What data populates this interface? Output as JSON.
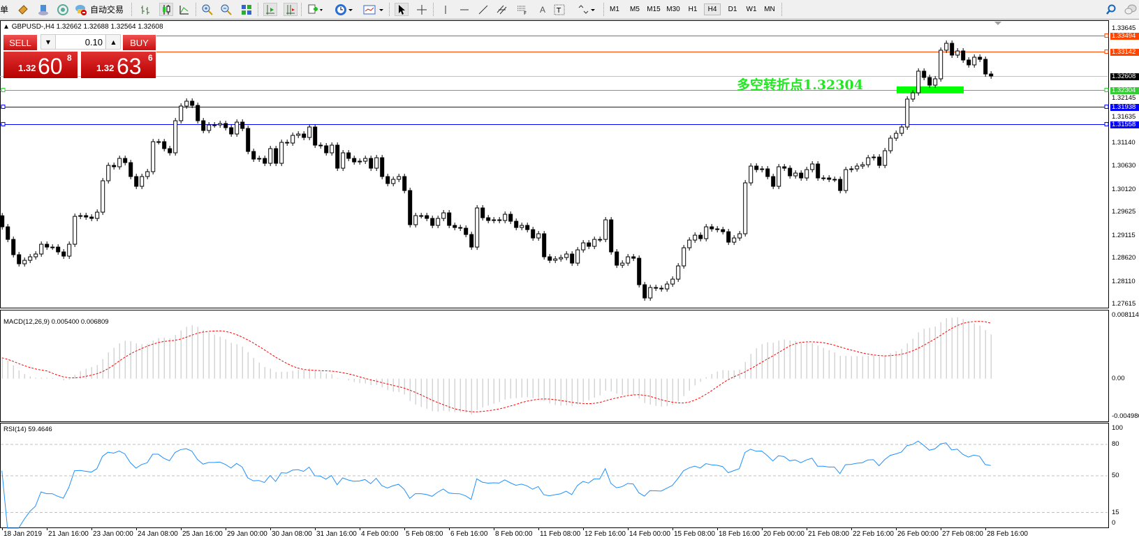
{
  "toolbar": {
    "cut_text": "单",
    "auto_trading_label": "自动交易",
    "icons": [
      "new-order-icon",
      "market-watch-icon",
      "navigator-icon",
      "signals-icon",
      "auto-trading-icon",
      "bar-chart-icon",
      "candlestick-icon",
      "line-chart-icon",
      "zoom-in-icon",
      "zoom-out-icon",
      "tile-windows-icon",
      "chart-shift-icon",
      "autoscroll-icon",
      "indicators-icon",
      "periods-icon",
      "templates-icon",
      "cursor-icon",
      "crosshair-icon",
      "vertical-line-icon",
      "horizontal-line-icon",
      "trendline-icon",
      "equidistant-channel-icon",
      "fibonacci-icon",
      "text-icon",
      "text-label-icon",
      "arrows-icon",
      "search-icon",
      "chat-icon"
    ],
    "timeframes": [
      "M1",
      "M5",
      "M15",
      "M30",
      "H1",
      "H4",
      "D1",
      "W1",
      "MN"
    ],
    "active_timeframe": "H4"
  },
  "chart": {
    "header": "GBPUSD-,H4  1.32662 1.32688 1.32564 1.32608",
    "annotation": "多空转折点1.32304",
    "annotation_color": "#22e822"
  },
  "trade_panel": {
    "sell_label": "SELL",
    "buy_label": "BUY",
    "volume": "0.10",
    "sell_small": "1.32",
    "sell_big": "60",
    "sell_sup": "8",
    "buy_small": "1.32",
    "buy_big": "63",
    "buy_sup": "6"
  },
  "price_axis": {
    "ticks": [
      "1.33645",
      "1.32145",
      "1.31635",
      "1.31140",
      "1.30630",
      "1.30120",
      "1.29625",
      "1.29115",
      "1.28620",
      "1.28110",
      "1.27615"
    ],
    "levels": [
      {
        "price": "1.33494",
        "color": "#ff4500"
      },
      {
        "price": "1.33142",
        "color": "#ff4500"
      },
      {
        "price": "1.32608",
        "color": "#000000",
        "line_color": "#c0c0c0"
      },
      {
        "price": "1.32304",
        "color": "#32cd32"
      },
      {
        "price": "1.31938",
        "color": "#0000ff"
      },
      {
        "price": "1.31558",
        "color": "#0000ff"
      }
    ]
  },
  "macd": {
    "label": "MACD(12,26,9) 0.005400 0.006809",
    "axis": [
      "0.008114",
      "0.00",
      "-0.004986"
    ],
    "range": [
      -0.004986,
      0.008114
    ],
    "histogram_color": "#c0c0c0",
    "signal_color": "#ff0000"
  },
  "rsi": {
    "label": "RSI(14) 59.4646",
    "axis": [
      "100",
      "80",
      "50",
      "15",
      "0"
    ],
    "levels": [
      80,
      50,
      15
    ],
    "color": "#1e90ff"
  },
  "time_axis": [
    "18 Jan 2019",
    "21 Jan 16:00",
    "23 Jan 00:00",
    "24 Jan 08:00",
    "25 Jan 16:00",
    "29 Jan 00:00",
    "30 Jan 08:00",
    "31 Jan 16:00",
    "4 Feb 00:00",
    "5 Feb 08:00",
    "6 Feb 16:00",
    "8 Feb 00:00",
    "11 Feb 08:00",
    "12 Feb 16:00",
    "14 Feb 00:00",
    "15 Feb 08:00",
    "18 Feb 16:00",
    "20 Feb 00:00",
    "21 Feb 08:00",
    "22 Feb 16:00",
    "26 Feb 00:00",
    "27 Feb 08:00",
    "28 Feb 16:00"
  ],
  "chart_data": {
    "type": "candlestick",
    "symbol": "GBPUSD-",
    "timeframe": "H4",
    "ylim": [
      1.27615,
      1.33645
    ],
    "first_open": 1.2955,
    "close": [
      1.29308,
      1.29033,
      1.28698,
      1.28499,
      1.28575,
      1.28652,
      1.28713,
      1.28927,
      1.28865,
      1.28865,
      1.28759,
      1.28667,
      1.28927,
      1.29537,
      1.29553,
      1.29522,
      1.29492,
      1.29629,
      1.30316,
      1.30652,
      1.30622,
      1.30805,
      1.30713,
      1.30408,
      1.30194,
      1.30408,
      1.30515,
      1.31171,
      1.31171,
      1.31019,
      1.30927,
      1.31629,
      1.3195,
      1.32057,
      1.31965,
      1.31629,
      1.31416,
      1.31538,
      1.31538,
      1.31568,
      1.31477,
      1.31339,
      1.31599,
      1.31461,
      1.30957,
      1.3079,
      1.30805,
      1.30698,
      1.31019,
      1.30698,
      1.31156,
      1.31141,
      1.31309,
      1.31339,
      1.31263,
      1.31492,
      1.31095,
      1.3108,
      1.30927,
      1.31095,
      1.30591,
      1.30927,
      1.30805,
      1.30728,
      1.30744,
      1.30805,
      1.30591,
      1.3082,
      1.30408,
      1.30255,
      1.30347,
      1.30408,
      1.30102,
      1.29354,
      1.29553,
      1.29553,
      1.29492,
      1.29339,
      1.29492,
      1.29614,
      1.29339,
      1.29293,
      1.29278,
      1.2914,
      1.28865,
      1.29721,
      1.29507,
      1.29446,
      1.29461,
      1.29446,
      1.29583,
      1.2943,
      1.29293,
      1.29339,
      1.29247,
      1.29064,
      1.29156,
      1.28652,
      1.28575,
      1.28606,
      1.28636,
      1.28713,
      1.28514,
      1.28804,
      1.28957,
      1.28881,
      1.29033,
      1.29033,
      1.29461,
      1.28759,
      1.28468,
      1.28514,
      1.28652,
      1.28621,
      1.28041,
      1.27751,
      1.2798,
      1.27965,
      1.27949,
      1.28056,
      1.28163,
      1.28453,
      1.2885,
      1.29018,
      1.29125,
      1.29049,
      1.29308,
      1.29263,
      1.29247,
      1.29201,
      1.28972,
      1.29064,
      1.29156,
      1.3027,
      1.30637,
      1.3056,
      1.30576,
      1.30408,
      1.30194,
      1.30622,
      1.30591,
      1.30423,
      1.30484,
      1.30377,
      1.3056,
      1.30683,
      1.30377,
      1.30377,
      1.30347,
      1.30347,
      1.30102,
      1.3056,
      1.30576,
      1.30637,
      1.30667,
      1.3082,
      1.30835,
      1.30652,
      1.30973,
      1.31248,
      1.31354,
      1.31492,
      1.32103,
      1.3224,
      1.32714,
      1.32576,
      1.32408,
      1.32546,
      1.33172,
      1.33324,
      1.33065,
      1.33156,
      1.32958,
      1.32851,
      1.33019,
      1.32973,
      1.32652,
      1.32608
    ]
  }
}
